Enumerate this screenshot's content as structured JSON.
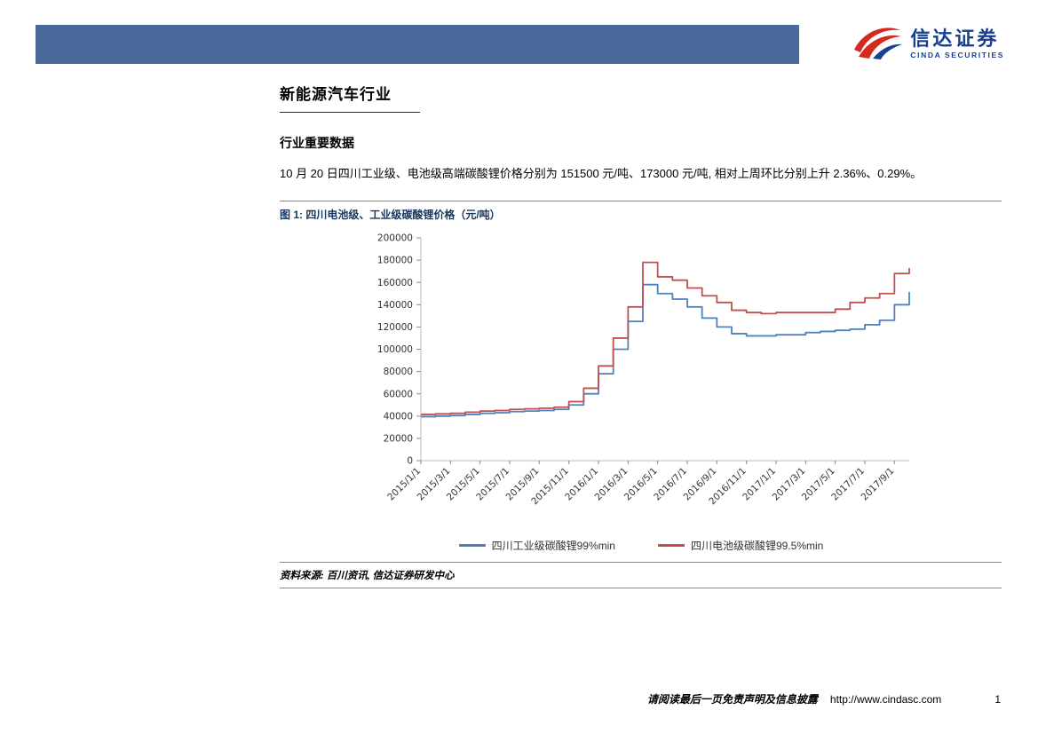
{
  "header": {
    "bar_color": "#4a6a9b",
    "logo_cn": "信达证券",
    "logo_en": "CINDA SECURITIES"
  },
  "page": {
    "title": "新能源汽车行业",
    "section_heading": "行业重要数据",
    "paragraph": "10 月 20 日四川工业级、电池级高端碳酸锂价格分别为 151500 元/吨、173000 元/吨, 相对上周环比分别上升 2.36%、0.29%。",
    "figure_caption": "图 1: 四川电池级、工业级碳酸锂价格（元/吨）",
    "source_note": "资料来源: 百川资讯, 信达证券研发中心"
  },
  "footer": {
    "disclaimer": "请阅读最后一页免责声明及信息披露",
    "url": "http://www.cindasc.com",
    "page_number": "1"
  },
  "chart_data": {
    "type": "line",
    "title": "四川电池级、工业级碳酸锂价格（元/吨）",
    "xlabel": "",
    "ylabel": "",
    "ylim": [
      0,
      200000
    ],
    "y_ticks": [
      0,
      20000,
      40000,
      60000,
      80000,
      100000,
      120000,
      140000,
      160000,
      180000,
      200000
    ],
    "grid": false,
    "legend_position": "bottom",
    "x": [
      "2015/1",
      "2015/2",
      "2015/3",
      "2015/4",
      "2015/5",
      "2015/6",
      "2015/7",
      "2015/8",
      "2015/9",
      "2015/10",
      "2015/11",
      "2015/12",
      "2016/1",
      "2016/2",
      "2016/3",
      "2016/4",
      "2016/5",
      "2016/6",
      "2016/7",
      "2016/8",
      "2016/9",
      "2016/10",
      "2016/11",
      "2016/12",
      "2017/1",
      "2017/2",
      "2017/3",
      "2017/4",
      "2017/5",
      "2017/6",
      "2017/7",
      "2017/8",
      "2017/9",
      "2017/10"
    ],
    "x_tick_labels": [
      "2015/1/1",
      "2015/3/1",
      "2015/5/1",
      "2015/7/1",
      "2015/9/1",
      "2015/11/1",
      "2016/1/1",
      "2016/3/1",
      "2016/5/1",
      "2016/7/1",
      "2016/9/1",
      "2016/11/1",
      "2017/1/1",
      "2017/3/1",
      "2017/5/1",
      "2017/7/1",
      "2017/9/1"
    ],
    "x_tick_step": 2,
    "series": [
      {
        "name": "四川工业级碳酸锂99%min",
        "color": "#4f81bd",
        "values": [
          39500,
          40000,
          40500,
          41500,
          42500,
          43000,
          44000,
          44500,
          45000,
          46000,
          50000,
          60000,
          78000,
          100000,
          125000,
          158000,
          150000,
          145000,
          138000,
          128000,
          120000,
          114000,
          112000,
          112000,
          113000,
          113000,
          115000,
          116000,
          117000,
          118000,
          122000,
          126000,
          140000,
          151500
        ]
      },
      {
        "name": "四川电池级碳酸锂99.5%min",
        "color": "#c0504d",
        "values": [
          41500,
          42000,
          42500,
          43500,
          44500,
          45000,
          46000,
          46500,
          47000,
          48000,
          53000,
          65000,
          85000,
          110000,
          138000,
          178000,
          165000,
          162000,
          155000,
          148000,
          142000,
          135000,
          133000,
          132000,
          133000,
          133000,
          133000,
          133000,
          136000,
          142000,
          146000,
          150000,
          168000,
          173000
        ]
      }
    ]
  }
}
